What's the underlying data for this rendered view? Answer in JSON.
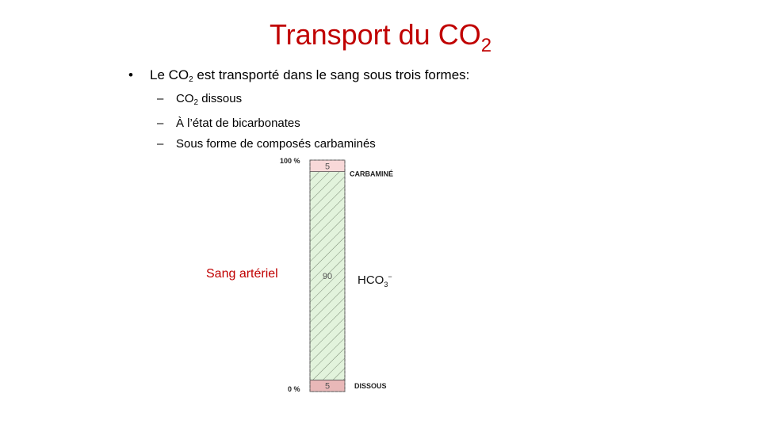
{
  "slide": {
    "title_main": "Transport du CO",
    "title_sub": "2",
    "bullet": {
      "text_before": "Le CO",
      "text_sub": "2",
      "text_after": " est transporté dans le sang sous trois formes:"
    },
    "sub_bullets": [
      {
        "prefix": "CO",
        "sub": "2",
        "text": " dissous"
      },
      {
        "prefix": "",
        "sub": "",
        "text": "À l’état de bicarbonates"
      },
      {
        "prefix": "",
        "sub": "",
        "text": "Sous forme de composés carbaminés"
      }
    ],
    "side_label": "Sang artériel"
  },
  "chart_data": {
    "type": "bar",
    "stacked": true,
    "axis": {
      "top_label": "100 %",
      "bottom_label": "0 %",
      "ylim": [
        0,
        100
      ]
    },
    "segments": [
      {
        "name": "DISSOUS",
        "label_main": "DISSOUS",
        "label_ion": "",
        "value": 5,
        "color": "#e9b8b8",
        "hatched": false
      },
      {
        "name": "HCO3-",
        "label_main": "HCO",
        "label_ion": "3",
        "label_charge": "−",
        "value": 90,
        "color": "#e2f3dc",
        "hatched": true
      },
      {
        "name": "CARBAMINÉ",
        "label_main": "CARBAMINÉ",
        "label_ion": "",
        "value": 5,
        "color": "#f8d8d8",
        "hatched": false
      }
    ]
  }
}
